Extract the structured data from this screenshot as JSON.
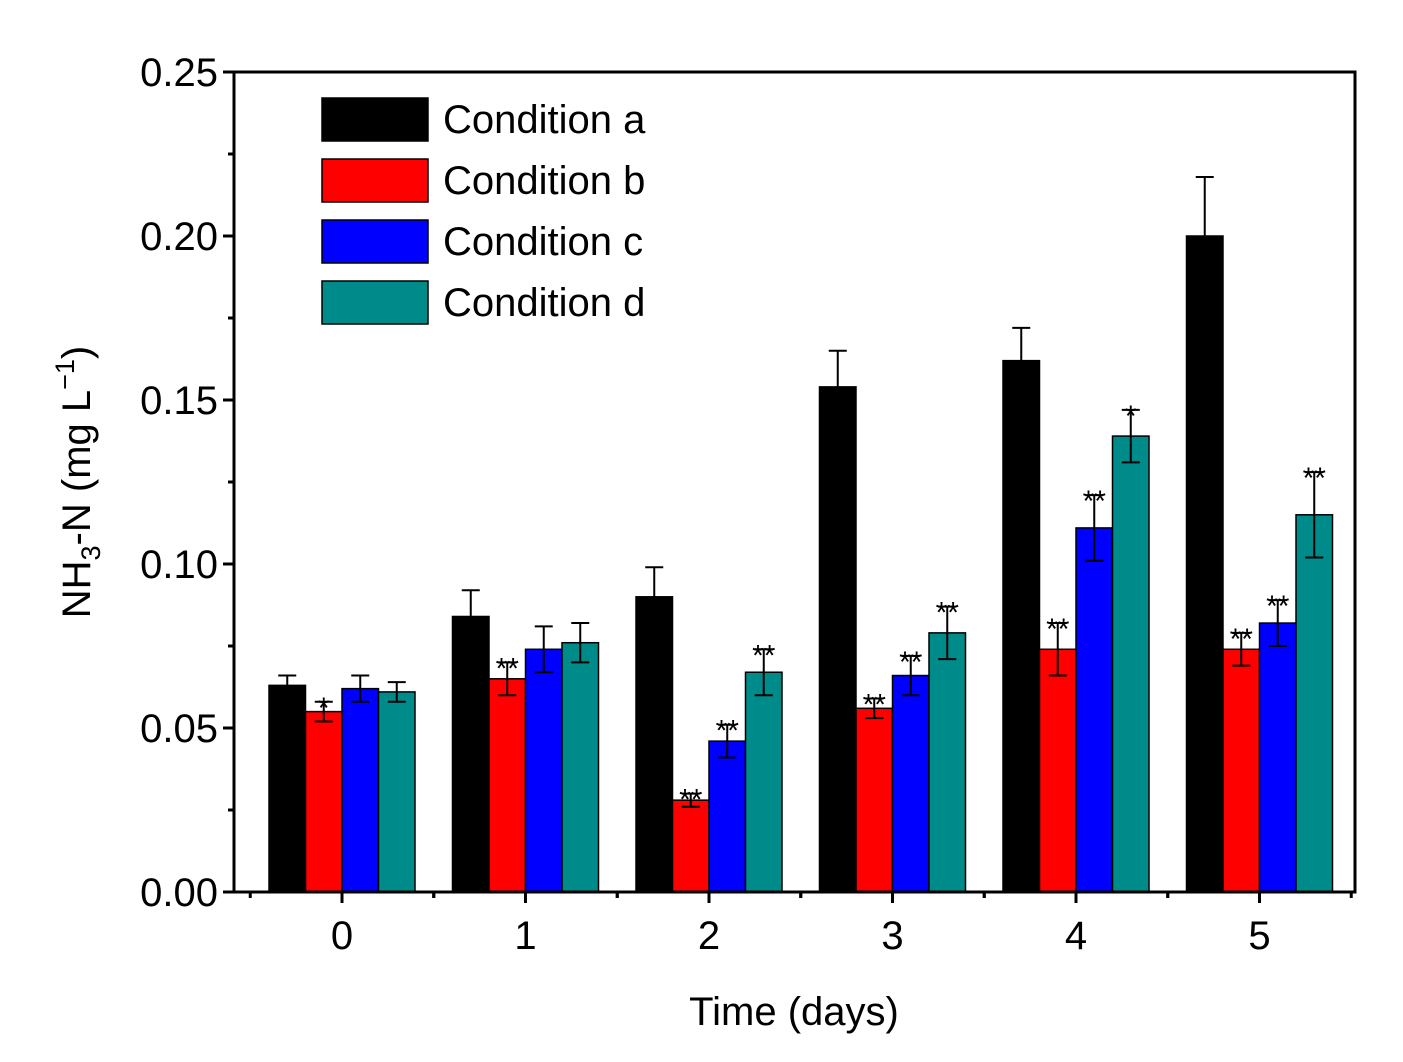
{
  "chart_data": {
    "type": "bar",
    "title": "",
    "xlabel": "Time (days)",
    "ylabel": {
      "prefix": "NH",
      "sub": "3",
      "mid": "-N (mg L",
      "sup": "−1",
      "suffix": ")"
    },
    "ylim": [
      0,
      0.25
    ],
    "yticks": [
      "0.00",
      "0.05",
      "0.10",
      "0.15",
      "0.20",
      "0.25"
    ],
    "ytick_values": [
      0,
      0.05,
      0.1,
      0.15,
      0.2,
      0.25
    ],
    "categories": [
      "0",
      "1",
      "2",
      "3",
      "4",
      "5"
    ],
    "legend_position": "top-left",
    "series": [
      {
        "name": "Condition a",
        "color": "#000000",
        "values": [
          0.063,
          0.084,
          0.09,
          0.154,
          0.162,
          0.2
        ],
        "errors": [
          0.003,
          0.008,
          0.009,
          0.011,
          0.01,
          0.018
        ],
        "sig": [
          "",
          "",
          "",
          "",
          "",
          ""
        ]
      },
      {
        "name": "Condition b",
        "color": "#ff0000",
        "values": [
          0.055,
          0.065,
          0.028,
          0.056,
          0.074,
          0.074
        ],
        "errors": [
          0.003,
          0.005,
          0.002,
          0.003,
          0.008,
          0.005
        ],
        "sig": [
          "*",
          "**",
          "**",
          "**",
          "**",
          "**"
        ]
      },
      {
        "name": "Condition c",
        "color": "#0000ff",
        "values": [
          0.062,
          0.074,
          0.046,
          0.066,
          0.111,
          0.082
        ],
        "errors": [
          0.004,
          0.007,
          0.005,
          0.006,
          0.01,
          0.007
        ],
        "sig": [
          "",
          "",
          "**",
          "**",
          "**",
          "**"
        ]
      },
      {
        "name": "Condition d",
        "color": "#008b8b",
        "values": [
          0.061,
          0.076,
          0.067,
          0.079,
          0.139,
          0.115
        ],
        "errors": [
          0.003,
          0.006,
          0.007,
          0.008,
          0.008,
          0.013
        ],
        "sig": [
          "",
          "",
          "**",
          "**",
          "*",
          "**"
        ]
      }
    ]
  }
}
